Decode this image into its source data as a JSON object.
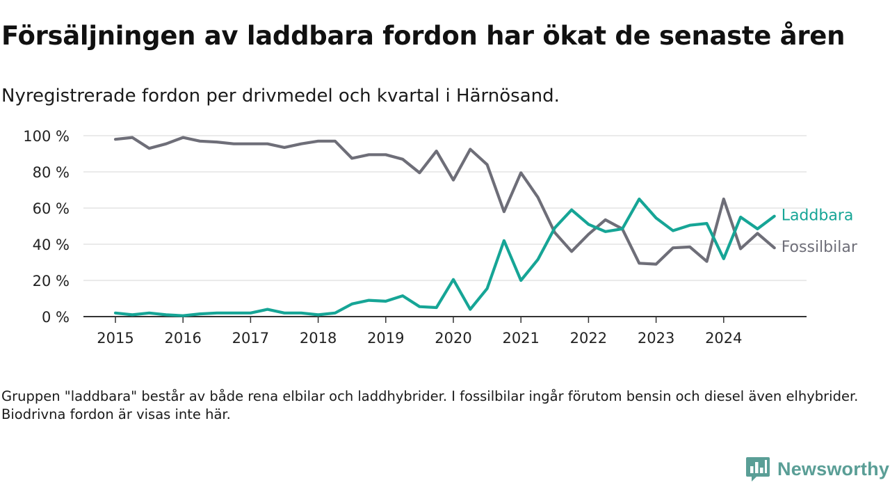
{
  "title": "Försäljningen av laddbara fordon har ökat de senaste åren",
  "subtitle": "Nyregistrerade fordon per drivmedel och kvartal i Härnösand.",
  "note": "Gruppen \"laddbara\" består av både rena elbilar och laddhybrider. I fossilbilar ingår förutom bensin och diesel även elhybrider. Biodrivna fordon är visas inte här.",
  "brand": {
    "name": "Newsworthy",
    "icon": "newsworthy-logo-icon"
  },
  "colors": {
    "laddbara": "#16a596",
    "fossil": "#6e6e78",
    "grid": "#dedede",
    "axis": "#333333",
    "brand": "#5a9e96"
  },
  "chart_data": {
    "type": "line",
    "title": "Försäljningen av laddbara fordon har ökat de senaste åren",
    "subtitle": "Nyregistrerade fordon per drivmedel och kvartal i Härnösand.",
    "xlabel": "",
    "ylabel": "",
    "x_start": 2015,
    "x_step": 0.25,
    "xlim": [
      2014.5,
      2025.2
    ],
    "ylim": [
      0,
      100
    ],
    "yticks": [
      0,
      20,
      40,
      60,
      80,
      100
    ],
    "ytick_labels": [
      "0 %",
      "20 %",
      "40 %",
      "60 %",
      "80 %",
      "100 %"
    ],
    "xticks": [
      2015,
      2016,
      2017,
      2018,
      2019,
      2020,
      2021,
      2022,
      2023,
      2024
    ],
    "xtick_labels": [
      "2015",
      "2016",
      "2017",
      "2018",
      "2019",
      "2020",
      "2021",
      "2022",
      "2023",
      "2024"
    ],
    "grid": true,
    "legend": "inline-right",
    "series": [
      {
        "name": "Laddbara",
        "key": "laddbara",
        "values": [
          2,
          1,
          2,
          1,
          0.5,
          1.5,
          2,
          2,
          2,
          4,
          2,
          2,
          1,
          2,
          7,
          9,
          8.5,
          11.5,
          5.5,
          5,
          20.5,
          4,
          15.5,
          42,
          20,
          31.5,
          49,
          59,
          51,
          47,
          48.5,
          65,
          54.5,
          47.5,
          50.5,
          51.5,
          32,
          55,
          48.5,
          55.5
        ]
      },
      {
        "name": "Fossilbilar",
        "key": "fossil",
        "values": [
          98,
          99,
          93,
          95.5,
          99,
          97,
          96.5,
          95.5,
          95.5,
          95.5,
          93.5,
          95.5,
          97,
          97,
          87.5,
          89.5,
          89.5,
          87,
          79.5,
          91.5,
          75.5,
          92.5,
          84,
          58,
          79.5,
          66,
          46.5,
          36,
          45.5,
          53.5,
          48.5,
          29.5,
          29,
          38,
          38.5,
          30.5,
          65,
          37.5,
          46,
          38
        ]
      }
    ]
  }
}
